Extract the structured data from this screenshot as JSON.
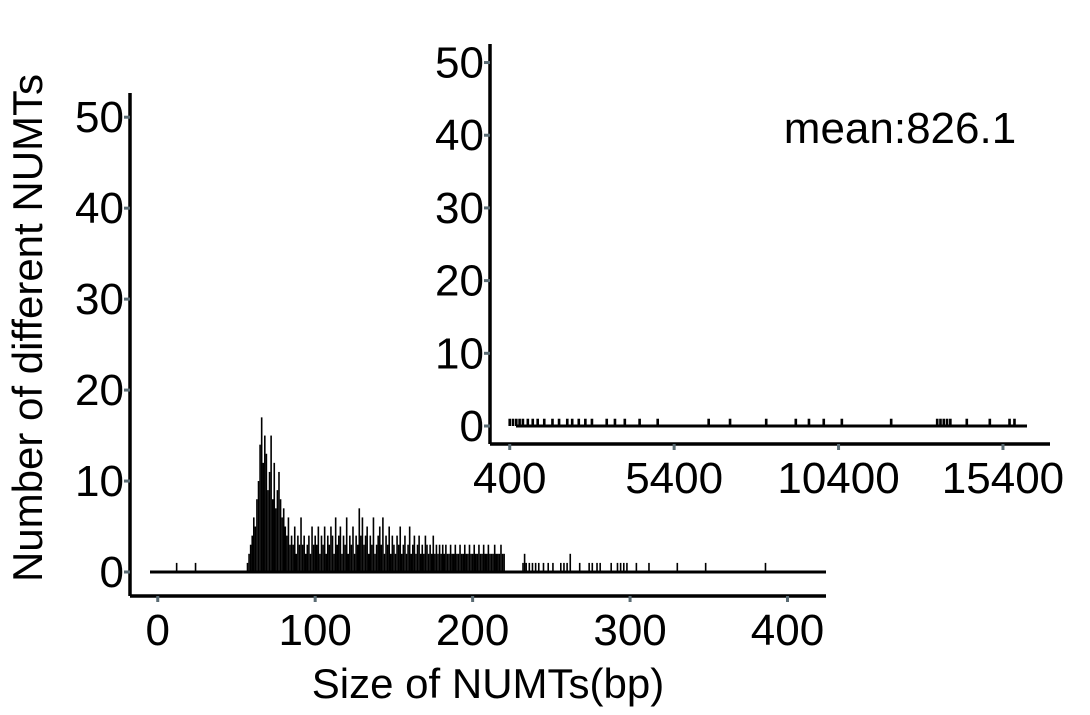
{
  "chart_data": [
    {
      "id": "main",
      "type": "bar",
      "title": "",
      "xlabel": "Size of NUMTs(bp)",
      "ylabel": "Number of different NUMTs",
      "xlim": [
        -10,
        420
      ],
      "ylim": [
        0,
        52
      ],
      "xticks": [
        "0",
        "100",
        "200",
        "300",
        "400"
      ],
      "yticks": [
        "0",
        "10",
        "20",
        "30",
        "40",
        "50"
      ],
      "grid": false,
      "bin_width": 1,
      "bars": [
        [
          12,
          1
        ],
        [
          24,
          1
        ],
        [
          57,
          1
        ],
        [
          58,
          2
        ],
        [
          59,
          3
        ],
        [
          60,
          4
        ],
        [
          61,
          6
        ],
        [
          62,
          5
        ],
        [
          63,
          8
        ],
        [
          64,
          10
        ],
        [
          65,
          14
        ],
        [
          66,
          17
        ],
        [
          67,
          12
        ],
        [
          68,
          15
        ],
        [
          69,
          13
        ],
        [
          70,
          9
        ],
        [
          71,
          11
        ],
        [
          72,
          15
        ],
        [
          73,
          8
        ],
        [
          74,
          12
        ],
        [
          75,
          7
        ],
        [
          76,
          9
        ],
        [
          77,
          11
        ],
        [
          78,
          8
        ],
        [
          79,
          6
        ],
        [
          80,
          7
        ],
        [
          81,
          5
        ],
        [
          82,
          4
        ],
        [
          83,
          6
        ],
        [
          84,
          3
        ],
        [
          85,
          4
        ],
        [
          86,
          3
        ],
        [
          87,
          5
        ],
        [
          88,
          2
        ],
        [
          89,
          4
        ],
        [
          90,
          3
        ],
        [
          91,
          6
        ],
        [
          92,
          3
        ],
        [
          93,
          4
        ],
        [
          94,
          2
        ],
        [
          95,
          3
        ],
        [
          96,
          4
        ],
        [
          97,
          2
        ],
        [
          98,
          5
        ],
        [
          99,
          3
        ],
        [
          100,
          4
        ],
        [
          101,
          3
        ],
        [
          102,
          5
        ],
        [
          103,
          2
        ],
        [
          104,
          4
        ],
        [
          105,
          3
        ],
        [
          106,
          5
        ],
        [
          107,
          2
        ],
        [
          108,
          4
        ],
        [
          109,
          3
        ],
        [
          110,
          5
        ],
        [
          111,
          4
        ],
        [
          112,
          2
        ],
        [
          113,
          6
        ],
        [
          114,
          3
        ],
        [
          115,
          4
        ],
        [
          116,
          5
        ],
        [
          117,
          2
        ],
        [
          118,
          4
        ],
        [
          119,
          3
        ],
        [
          120,
          6
        ],
        [
          121,
          2
        ],
        [
          122,
          4
        ],
        [
          123,
          3
        ],
        [
          124,
          5
        ],
        [
          125,
          2
        ],
        [
          126,
          4
        ],
        [
          127,
          3
        ],
        [
          128,
          7
        ],
        [
          129,
          4
        ],
        [
          130,
          6
        ],
        [
          131,
          3
        ],
        [
          132,
          4
        ],
        [
          133,
          5
        ],
        [
          134,
          2
        ],
        [
          135,
          4
        ],
        [
          136,
          3
        ],
        [
          137,
          6
        ],
        [
          138,
          2
        ],
        [
          139,
          3
        ],
        [
          140,
          4
        ],
        [
          141,
          5
        ],
        [
          142,
          3
        ],
        [
          143,
          6
        ],
        [
          144,
          2
        ],
        [
          145,
          4
        ],
        [
          146,
          3
        ],
        [
          147,
          5
        ],
        [
          148,
          2
        ],
        [
          149,
          4
        ],
        [
          150,
          3
        ],
        [
          151,
          2
        ],
        [
          152,
          4
        ],
        [
          153,
          3
        ],
        [
          154,
          5
        ],
        [
          155,
          2
        ],
        [
          156,
          3
        ],
        [
          157,
          4
        ],
        [
          158,
          2
        ],
        [
          159,
          3
        ],
        [
          160,
          5
        ],
        [
          161,
          2
        ],
        [
          162,
          3
        ],
        [
          163,
          4
        ],
        [
          164,
          2
        ],
        [
          165,
          3
        ],
        [
          166,
          4
        ],
        [
          167,
          2
        ],
        [
          168,
          3
        ],
        [
          169,
          2
        ],
        [
          170,
          4
        ],
        [
          171,
          3
        ],
        [
          172,
          2
        ],
        [
          173,
          3
        ],
        [
          174,
          2
        ],
        [
          175,
          4
        ],
        [
          176,
          2
        ],
        [
          177,
          3
        ],
        [
          178,
          2
        ],
        [
          179,
          3
        ],
        [
          180,
          2
        ],
        [
          181,
          3
        ],
        [
          182,
          2
        ],
        [
          183,
          3
        ],
        [
          184,
          2
        ],
        [
          185,
          2
        ],
        [
          186,
          3
        ],
        [
          187,
          2
        ],
        [
          188,
          2
        ],
        [
          189,
          3
        ],
        [
          190,
          2
        ],
        [
          191,
          2
        ],
        [
          192,
          3
        ],
        [
          193,
          2
        ],
        [
          194,
          2
        ],
        [
          195,
          3
        ],
        [
          196,
          2
        ],
        [
          197,
          2
        ],
        [
          198,
          3
        ],
        [
          199,
          2
        ],
        [
          200,
          2
        ],
        [
          201,
          3
        ],
        [
          202,
          2
        ],
        [
          203,
          2
        ],
        [
          204,
          3
        ],
        [
          205,
          2
        ],
        [
          206,
          2
        ],
        [
          207,
          3
        ],
        [
          208,
          2
        ],
        [
          209,
          2
        ],
        [
          210,
          3
        ],
        [
          211,
          2
        ],
        [
          212,
          2
        ],
        [
          213,
          2
        ],
        [
          214,
          3
        ],
        [
          215,
          2
        ],
        [
          216,
          2
        ],
        [
          217,
          2
        ],
        [
          218,
          3
        ],
        [
          219,
          2
        ],
        [
          220,
          2
        ],
        [
          232,
          1
        ],
        [
          233,
          2
        ],
        [
          234,
          1
        ],
        [
          236,
          1
        ],
        [
          238,
          1
        ],
        [
          240,
          1
        ],
        [
          242,
          1
        ],
        [
          245,
          1
        ],
        [
          248,
          1
        ],
        [
          251,
          1
        ],
        [
          256,
          1
        ],
        [
          258,
          1
        ],
        [
          260,
          1
        ],
        [
          262,
          2
        ],
        [
          268,
          1
        ],
        [
          274,
          1
        ],
        [
          276,
          1
        ],
        [
          279,
          1
        ],
        [
          281,
          1
        ],
        [
          288,
          1
        ],
        [
          292,
          1
        ],
        [
          294,
          1
        ],
        [
          296,
          1
        ],
        [
          298,
          1
        ],
        [
          304,
          1
        ],
        [
          312,
          1
        ],
        [
          330,
          1
        ],
        [
          348,
          1
        ],
        [
          386,
          1
        ]
      ]
    },
    {
      "id": "inset",
      "type": "bar",
      "title": "",
      "annotation": "mean:826.1",
      "xlim": [
        -200,
        16800
      ],
      "ylim": [
        0,
        52
      ],
      "xticks": [
        "400",
        "5400",
        "10400",
        "15400"
      ],
      "xtick_values": [
        400,
        5400,
        10400,
        15400
      ],
      "yticks": [
        "0",
        "10",
        "20",
        "30",
        "40",
        "50"
      ],
      "grid": false,
      "bin_width": 80,
      "bars": [
        [
          400,
          1
        ],
        [
          500,
          1
        ],
        [
          600,
          1
        ],
        [
          700,
          1
        ],
        [
          800,
          1
        ],
        [
          950,
          1
        ],
        [
          1100,
          1
        ],
        [
          1250,
          1
        ],
        [
          1450,
          1
        ],
        [
          1700,
          1
        ],
        [
          1900,
          1
        ],
        [
          2150,
          1
        ],
        [
          2300,
          1
        ],
        [
          2500,
          1
        ],
        [
          2700,
          1
        ],
        [
          2900,
          1
        ],
        [
          3350,
          1
        ],
        [
          3600,
          1
        ],
        [
          3900,
          1
        ],
        [
          4350,
          1
        ],
        [
          4900,
          1
        ],
        [
          6450,
          1
        ],
        [
          7100,
          1
        ],
        [
          8200,
          1
        ],
        [
          9100,
          1
        ],
        [
          9500,
          1
        ],
        [
          9950,
          1
        ],
        [
          10500,
          1
        ],
        [
          12000,
          1
        ],
        [
          13400,
          1
        ],
        [
          13500,
          1
        ],
        [
          13600,
          1
        ],
        [
          13700,
          1
        ],
        [
          13800,
          1
        ],
        [
          14300,
          1
        ],
        [
          15000,
          1
        ],
        [
          15600,
          1
        ],
        [
          15750,
          1
        ]
      ]
    }
  ]
}
